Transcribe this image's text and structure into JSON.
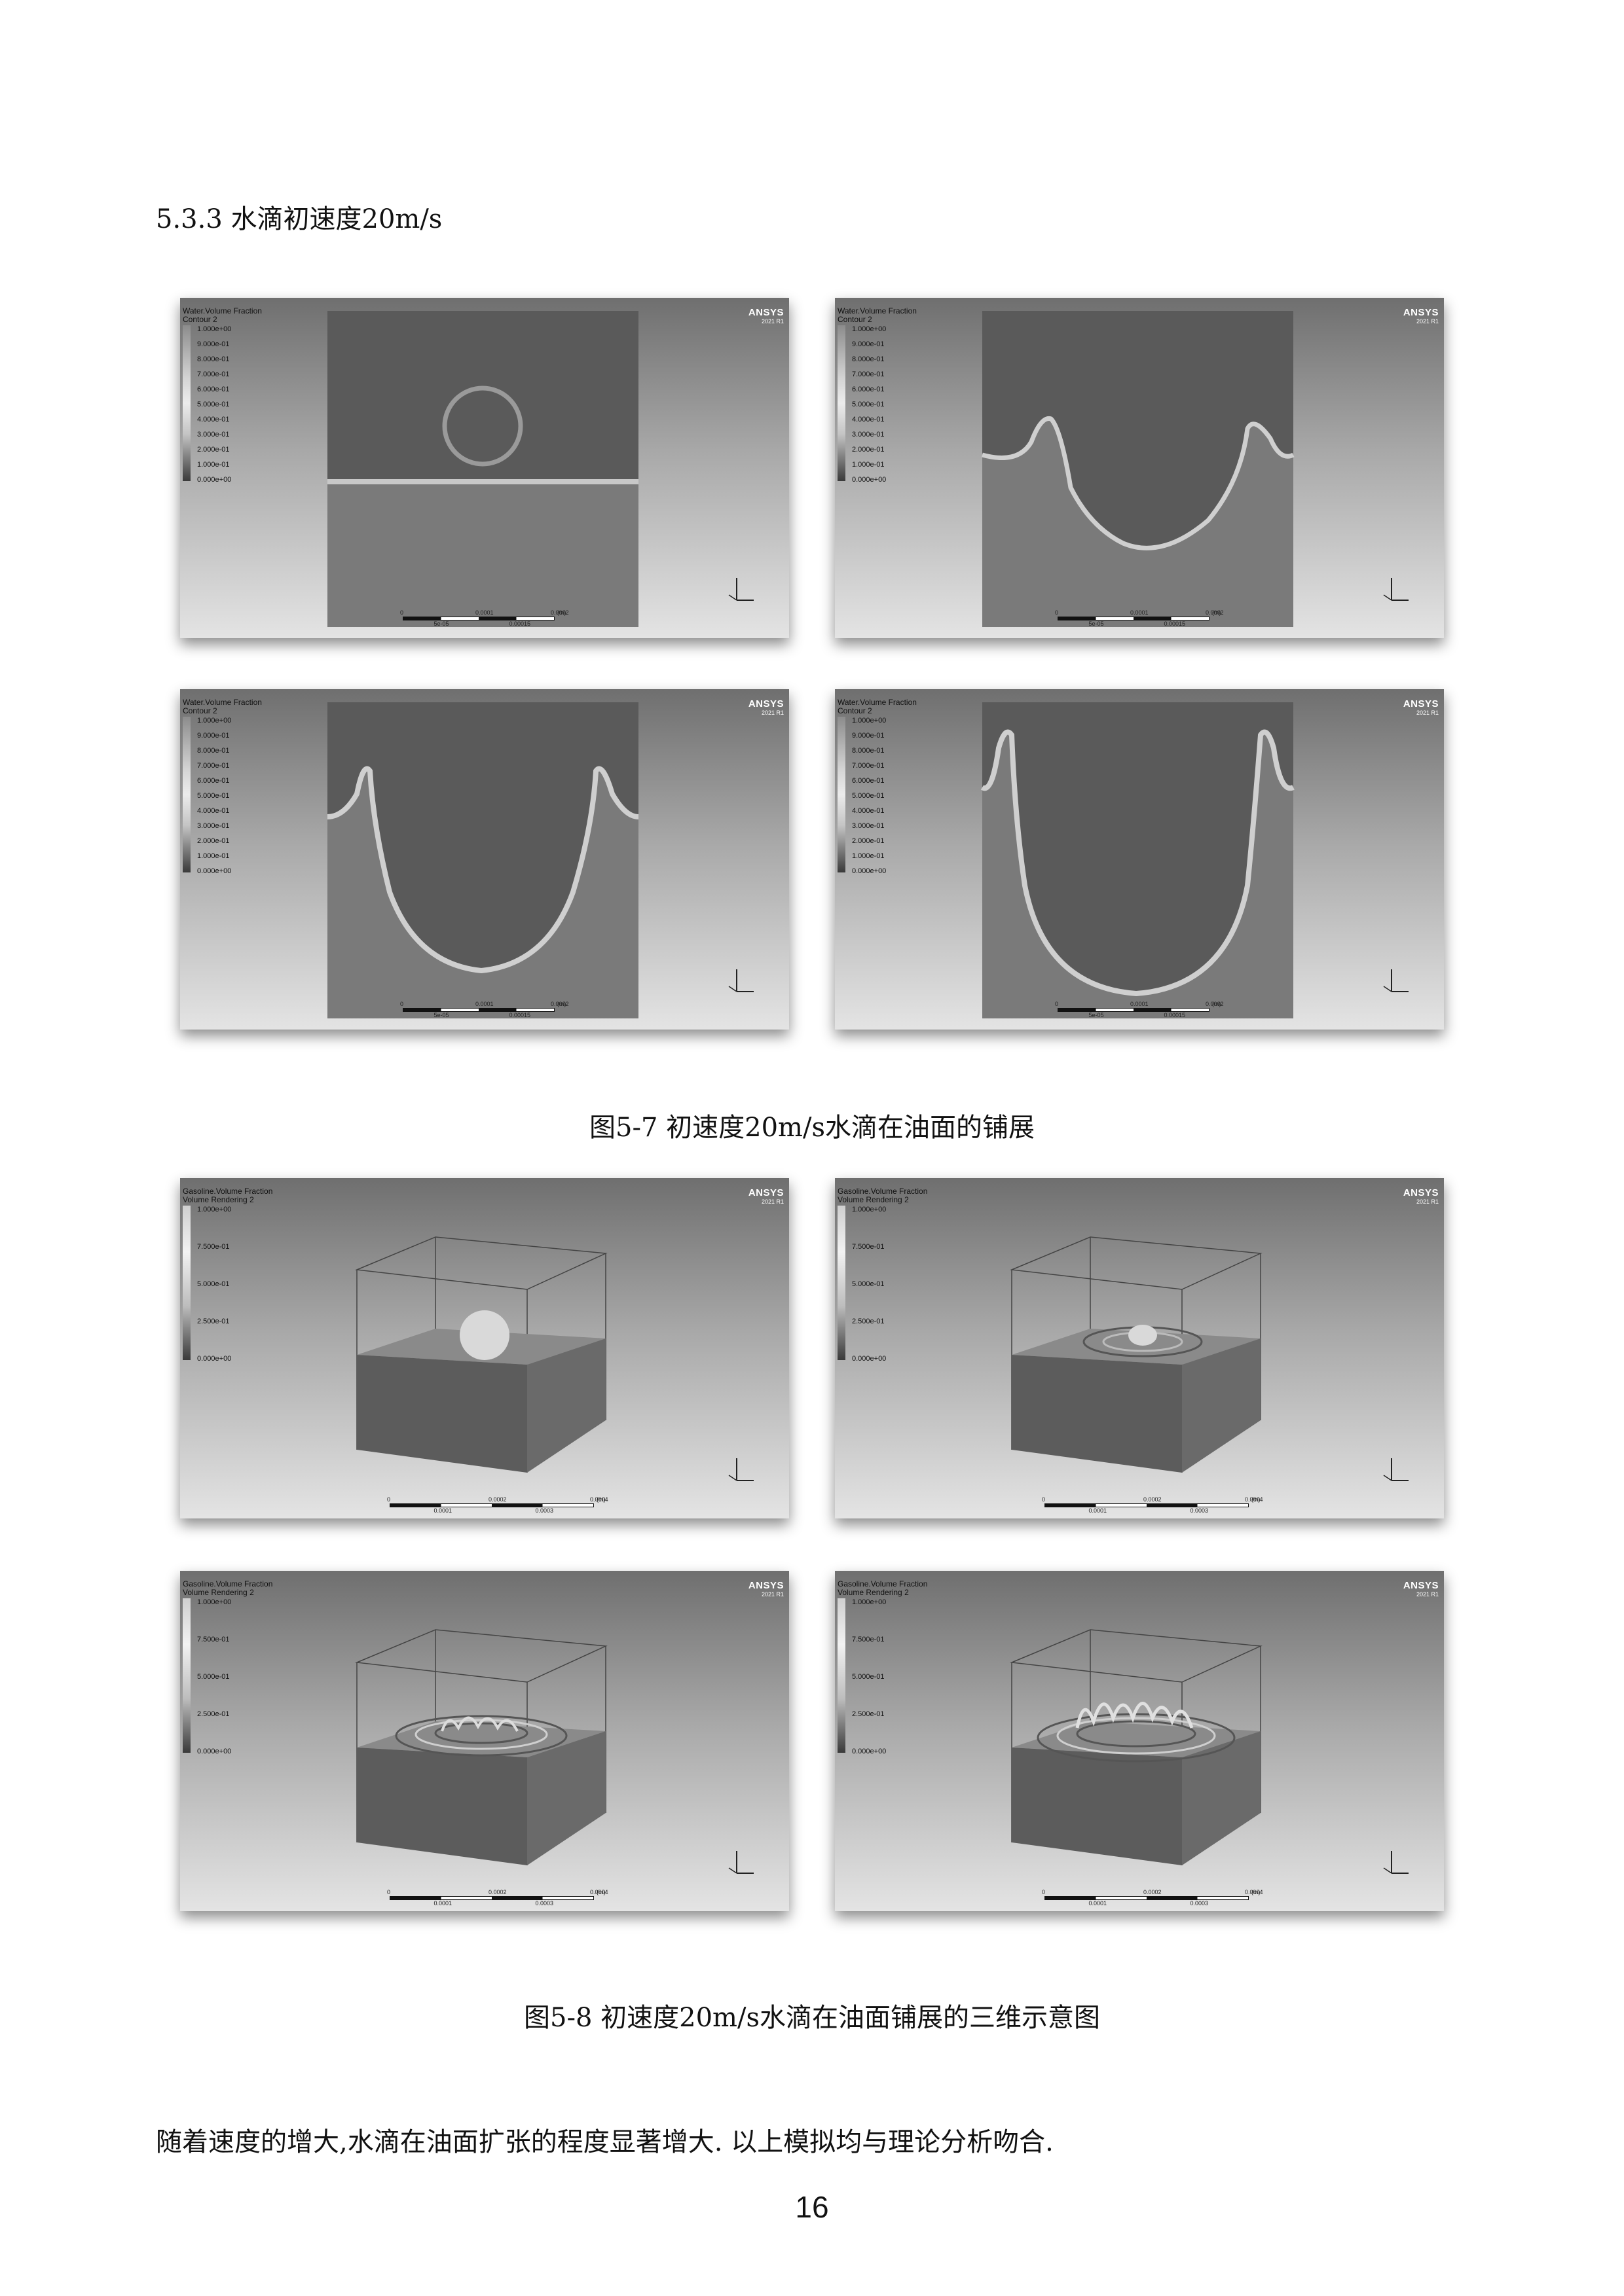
{
  "section_heading": "5.3.3 水滴初速度20m/s",
  "brand": {
    "name": "ANSYS",
    "version": "2021 R1"
  },
  "figure_2d": {
    "caption": "图5-7 初速度20m/s水滴在油面的铺展",
    "legend_title": "Water.Volume Fraction",
    "legend_subtitle": "Contour 2",
    "legend_values": [
      "1.000e+00",
      "9.000e-01",
      "8.000e-01",
      "7.000e-01",
      "6.000e-01",
      "5.000e-01",
      "4.000e-01",
      "3.000e-01",
      "2.000e-01",
      "1.000e-01",
      "0.000e+00"
    ],
    "scale_top": [
      "0",
      "0.0001",
      "0.0002",
      "(m)"
    ],
    "scale_bottom": [
      "5e-05",
      "0.00015"
    ]
  },
  "figure_3d": {
    "caption": "图5-8 初速度20m/s水滴在油面铺展的三维示意图",
    "legend_title": "Gasoline.Volume Fraction",
    "legend_subtitle": "Volume Rendering 2",
    "legend_values": [
      "1.000e+00",
      "7.500e-01",
      "5.000e-01",
      "2.500e-01",
      "0.000e+00"
    ],
    "scale_top": [
      "0",
      "0.0002",
      "0.0004",
      "(m)"
    ],
    "scale_bottom": [
      "0.0001",
      "0.0003"
    ]
  },
  "body_text": "随着速度的增大,水滴在油面扩张的程度显著增大. 以上模拟均与理论分析吻合.",
  "page_number": "16"
}
